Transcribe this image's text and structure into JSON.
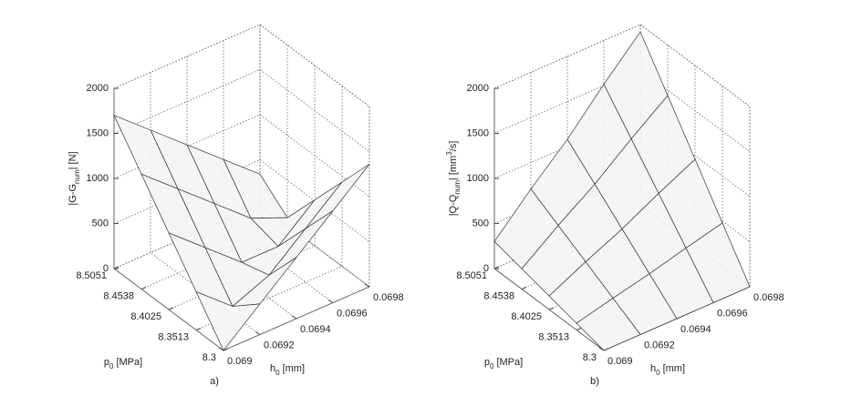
{
  "chart_data": [
    {
      "type": "surface3d",
      "panel": "a)",
      "xlabel": [
        {
          "text": "h"
        },
        {
          "text": "0",
          "sub": true
        },
        {
          "text": " [mm]"
        }
      ],
      "ylabel": [
        {
          "text": "p"
        },
        {
          "text": "0",
          "sub": true
        },
        {
          "text": " [MPa]"
        }
      ],
      "zlabel": [
        {
          "text": "|G-G"
        },
        {
          "text": "num",
          "sub": true
        },
        {
          "text": "| [N]"
        }
      ],
      "x": [
        0.069,
        0.0692,
        0.0694,
        0.0696,
        0.0698
      ],
      "y": [
        8.3,
        8.3513,
        8.4025,
        8.4538,
        8.5051
      ],
      "z": [
        [
          0,
          340,
          680,
          1020,
          1360
        ],
        [
          425,
          85,
          255,
          595,
          935
        ],
        [
          850,
          510,
          170,
          170,
          510
        ],
        [
          1275,
          935,
          595,
          255,
          85
        ],
        [
          1700,
          1360,
          1020,
          680,
          340
        ]
      ],
      "xlim": [
        0.069,
        0.0698
      ],
      "ylim": [
        8.3,
        8.5051
      ],
      "zlim": [
        0,
        2000
      ],
      "xticks": [
        0.069,
        0.0692,
        0.0694,
        0.0696,
        0.0698
      ],
      "yticks": [
        8.3,
        8.3513,
        8.4025,
        8.4538,
        8.5051
      ],
      "zticks": [
        0,
        500,
        1000,
        1500,
        2000
      ],
      "grid": true
    },
    {
      "type": "surface3d",
      "panel": "b)",
      "xlabel": [
        {
          "text": "h"
        },
        {
          "text": "0",
          "sub": true
        },
        {
          "text": " [mm]"
        }
      ],
      "ylabel": [
        {
          "text": "p"
        },
        {
          "text": "0",
          "sub": true
        },
        {
          "text": " [MPa]"
        }
      ],
      "zlabel": [
        {
          "text": "|Q-Q"
        },
        {
          "text": "num",
          "sub": true
        },
        {
          "text": "|  [mm"
        },
        {
          "text": "3",
          "sup": true
        },
        {
          "text": "/s]"
        }
      ],
      "x": [
        0.069,
        0.0692,
        0.0694,
        0.0696,
        0.0698
      ],
      "y": [
        8.3,
        8.3513,
        8.4025,
        8.4538,
        8.5051
      ],
      "z": [
        [
          0,
          0,
          0,
          0,
          0
        ],
        [
          75,
          176,
          270,
          379,
          480
        ],
        [
          150,
          353,
          540,
          758,
          960
        ],
        [
          225,
          529,
          810,
          1136,
          1440
        ],
        [
          300,
          705,
          1080,
          1515,
          1920
        ]
      ],
      "xlim": [
        0.069,
        0.0698
      ],
      "ylim": [
        8.3,
        8.5051
      ],
      "zlim": [
        0,
        2000
      ],
      "xticks": [
        0.069,
        0.0692,
        0.0694,
        0.0696,
        0.0698
      ],
      "yticks": [
        8.3,
        8.3513,
        8.4025,
        8.4538,
        8.5051
      ],
      "zticks": [
        0,
        500,
        1000,
        1500,
        2000
      ],
      "grid": true
    }
  ]
}
